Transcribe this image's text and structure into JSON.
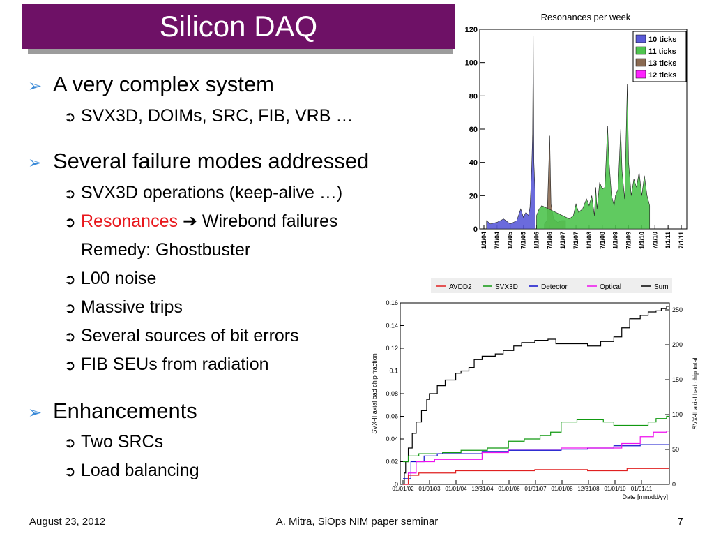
{
  "slide": {
    "title": "Silicon DAQ",
    "bullets": [
      {
        "text": "A very complex system",
        "subs": [
          {
            "text": "SVX3D, DOIMs, SRC, FIB, VRB …"
          }
        ]
      },
      {
        "text": "Several failure modes addressed",
        "subs": [
          {
            "text": "SVX3D operations (keep-alive …)"
          },
          {
            "prefix_red": "Resonances",
            "arrow": "➔",
            "suffix": "Wirebond failures"
          },
          {
            "text": "Remedy: Ghostbuster"
          },
          {
            "text": "L00 noise"
          },
          {
            "text": "Massive trips"
          },
          {
            "text": "Several sources of bit errors"
          },
          {
            "text": "FIB SEUs from radiation"
          }
        ]
      },
      {
        "text": "Enhancements",
        "subs": [
          {
            "text": "Two SRCs"
          },
          {
            "text": "Load balancing"
          }
        ]
      }
    ],
    "footer": {
      "date": "August 23, 2012",
      "center": "A. Mitra, SiOps NIM paper seminar",
      "page": "7"
    },
    "colors": {
      "title_bg": "#6e1166",
      "bullet_arrow": "#3a8ad8",
      "highlight": "#e8161b"
    }
  },
  "chart_data": [
    {
      "type": "bar",
      "title": "Resonances per week",
      "ylim": [
        0,
        120
      ],
      "yticks": [
        "0",
        "20",
        "40",
        "60",
        "80",
        "100",
        "120"
      ],
      "xticks": [
        "1/1/04",
        "7/1/04",
        "1/1/05",
        "7/1/05",
        "1/1/06",
        "7/1/06",
        "1/1/07",
        "7/1/07",
        "1/1/08",
        "7/1/08",
        "1/1/09",
        "7/1/09",
        "1/1/10",
        "7/1/10",
        "1/1/11",
        "7/1/11"
      ],
      "legend": [
        {
          "name": "10 ticks",
          "color": "#5b5bd8"
        },
        {
          "name": "11 ticks",
          "color": "#4fc44f"
        },
        {
          "name": "13 ticks",
          "color": "#8a6a52"
        },
        {
          "name": "12 ticks",
          "color": "#ff22ff"
        }
      ],
      "series": [
        {
          "name": "10 ticks",
          "color": "#5b5bd8",
          "points": [
            [
              0.2,
              5
            ],
            [
              0.5,
              3
            ],
            [
              1.0,
              4
            ],
            [
              1.5,
              6
            ],
            [
              2.0,
              3
            ],
            [
              2.5,
              5
            ],
            [
              2.8,
              12
            ],
            [
              3.0,
              7
            ],
            [
              3.2,
              10
            ],
            [
              3.4,
              8
            ],
            [
              3.5,
              13
            ],
            [
              3.55,
              21
            ],
            [
              3.6,
              30
            ],
            [
              3.65,
              42
            ],
            [
              3.7,
              57
            ],
            [
              3.75,
              116
            ],
            [
              3.8,
              40
            ],
            [
              3.9,
              20
            ]
          ]
        },
        {
          "name": "13 ticks",
          "color": "#8a6a52",
          "points": [
            [
              4.6,
              3
            ],
            [
              4.8,
              5
            ],
            [
              5.0,
              56
            ],
            [
              5.1,
              15
            ],
            [
              5.3,
              6
            ],
            [
              5.6,
              4
            ],
            [
              5.9,
              5
            ],
            [
              6.2,
              5
            ]
          ]
        },
        {
          "name": "11 ticks",
          "color": "#4fc44f",
          "points": [
            [
              4.0,
              8
            ],
            [
              4.2,
              12
            ],
            [
              4.4,
              14
            ],
            [
              6.5,
              6
            ],
            [
              6.8,
              8
            ],
            [
              7.0,
              15
            ],
            [
              7.2,
              10
            ],
            [
              7.5,
              12
            ],
            [
              7.8,
              18
            ],
            [
              8.0,
              14
            ],
            [
              8.2,
              20
            ],
            [
              8.4,
              8
            ],
            [
              8.5,
              25
            ],
            [
              8.6,
              12
            ],
            [
              8.8,
              28
            ],
            [
              9.0,
              24
            ],
            [
              9.2,
              25
            ],
            [
              9.4,
              62
            ],
            [
              9.5,
              42
            ],
            [
              9.7,
              20
            ],
            [
              9.9,
              14
            ],
            [
              10.0,
              20
            ],
            [
              10.2,
              24
            ],
            [
              10.4,
              60
            ],
            [
              10.5,
              35
            ],
            [
              10.7,
              18
            ],
            [
              10.9,
              87
            ],
            [
              11.0,
              40
            ],
            [
              11.2,
              20
            ],
            [
              11.4,
              30
            ],
            [
              11.6,
              25
            ],
            [
              11.8,
              34
            ],
            [
              12.0,
              20
            ],
            [
              12.2,
              32
            ],
            [
              12.4,
              20
            ],
            [
              12.6,
              14
            ]
          ]
        }
      ]
    },
    {
      "type": "line",
      "xlabel": "Date [mm/dd/yy]",
      "ylabel": "SVX-II axial bad chip fraction",
      "ylabel_right": "SVX-II axial bad chip total",
      "ylim": [
        0,
        0.16
      ],
      "ylim_right": [
        0,
        260
      ],
      "yticks": [
        "0",
        "0.02",
        "0.04",
        "0.06",
        "0.08",
        "0.1",
        "0.12",
        "0.14",
        "0.16"
      ],
      "yticks_right": [
        "0",
        "50",
        "100",
        "150",
        "200",
        "250"
      ],
      "xticks": [
        "01/01/02",
        "01/01/03",
        "01/01/04",
        "12/31/04",
        "01/01/06",
        "01/01/07",
        "01/01/08",
        "12/31/08",
        "01/01/10",
        "01/01/11"
      ],
      "legend": [
        {
          "name": "AVDD2",
          "color": "#e02020"
        },
        {
          "name": "SVX3D",
          "color": "#119911"
        },
        {
          "name": "Detector",
          "color": "#1010cc"
        },
        {
          "name": "Optical",
          "color": "#ee11ee"
        },
        {
          "name": "Sum",
          "color": "#000000"
        }
      ],
      "series": [
        {
          "name": "Sum",
          "color": "#000000",
          "points": [
            [
              0,
              0
            ],
            [
              0.05,
              0.01
            ],
            [
              0.1,
              0.02
            ],
            [
              0.2,
              0.032
            ],
            [
              0.35,
              0.045
            ],
            [
              0.5,
              0.055
            ],
            [
              0.7,
              0.065
            ],
            [
              0.9,
              0.075
            ],
            [
              1.0,
              0.08
            ],
            [
              1.3,
              0.087
            ],
            [
              1.6,
              0.092
            ],
            [
              2.0,
              0.098
            ],
            [
              2.2,
              0.1
            ],
            [
              2.5,
              0.103
            ],
            [
              2.7,
              0.11
            ],
            [
              3.0,
              0.113
            ],
            [
              3.5,
              0.115
            ],
            [
              3.8,
              0.118
            ],
            [
              4.2,
              0.122
            ],
            [
              4.5,
              0.125
            ],
            [
              5.0,
              0.127
            ],
            [
              5.5,
              0.128
            ],
            [
              5.8,
              0.124
            ],
            [
              6.3,
              0.124
            ],
            [
              7.0,
              0.122
            ],
            [
              7.5,
              0.126
            ],
            [
              8.0,
              0.13
            ],
            [
              8.3,
              0.138
            ],
            [
              8.6,
              0.146
            ],
            [
              9.0,
              0.149
            ],
            [
              9.3,
              0.152
            ],
            [
              9.6,
              0.153
            ],
            [
              9.8,
              0.155
            ],
            [
              10.0,
              0.157
            ]
          ]
        },
        {
          "name": "SVX3D",
          "color": "#119911",
          "points": [
            [
              0,
              0.02
            ],
            [
              0.2,
              0.025
            ],
            [
              0.6,
              0.027
            ],
            [
              1.5,
              0.028
            ],
            [
              2.2,
              0.03
            ],
            [
              3.2,
              0.032
            ],
            [
              4.0,
              0.038
            ],
            [
              4.6,
              0.04
            ],
            [
              5.2,
              0.043
            ],
            [
              5.6,
              0.046
            ],
            [
              6.0,
              0.055
            ],
            [
              6.6,
              0.057
            ],
            [
              7.6,
              0.055
            ],
            [
              8.0,
              0.052
            ],
            [
              9.0,
              0.052
            ],
            [
              9.3,
              0.055
            ],
            [
              9.6,
              0.058
            ],
            [
              10.0,
              0.06
            ]
          ]
        },
        {
          "name": "Detector",
          "color": "#1010cc",
          "points": [
            [
              0,
              0.005
            ],
            [
              0.3,
              0.02
            ],
            [
              0.8,
              0.025
            ],
            [
              1.3,
              0.027
            ],
            [
              2.0,
              0.027
            ],
            [
              3.0,
              0.029
            ],
            [
              4.0,
              0.03
            ],
            [
              5.0,
              0.03
            ],
            [
              6.0,
              0.031
            ],
            [
              7.0,
              0.032
            ],
            [
              8.0,
              0.034
            ],
            [
              9.0,
              0.035
            ],
            [
              10.0,
              0.035
            ]
          ]
        },
        {
          "name": "Optical",
          "color": "#ee11ee",
          "points": [
            [
              0,
              0
            ],
            [
              0.2,
              0.01
            ],
            [
              0.5,
              0.02
            ],
            [
              1.2,
              0.022
            ],
            [
              2.2,
              0.022
            ],
            [
              3.0,
              0.028
            ],
            [
              4.0,
              0.031
            ],
            [
              5.0,
              0.031
            ],
            [
              6.0,
              0.032
            ],
            [
              7.0,
              0.032
            ],
            [
              8.3,
              0.036
            ],
            [
              9.0,
              0.042
            ],
            [
              9.5,
              0.046
            ],
            [
              10.0,
              0.047
            ]
          ]
        },
        {
          "name": "AVDD2",
          "color": "#e02020",
          "points": [
            [
              0,
              0
            ],
            [
              0.2,
              0.008
            ],
            [
              0.6,
              0.01
            ],
            [
              1.5,
              0.01
            ],
            [
              2.0,
              0.012
            ],
            [
              3.0,
              0.012
            ],
            [
              4.0,
              0.012
            ],
            [
              5.0,
              0.013
            ],
            [
              6.0,
              0.013
            ],
            [
              7.0,
              0.012
            ],
            [
              8.0,
              0.012
            ],
            [
              8.5,
              0.014
            ],
            [
              9.0,
              0.014
            ],
            [
              10.0,
              0.014
            ]
          ]
        }
      ]
    }
  ]
}
